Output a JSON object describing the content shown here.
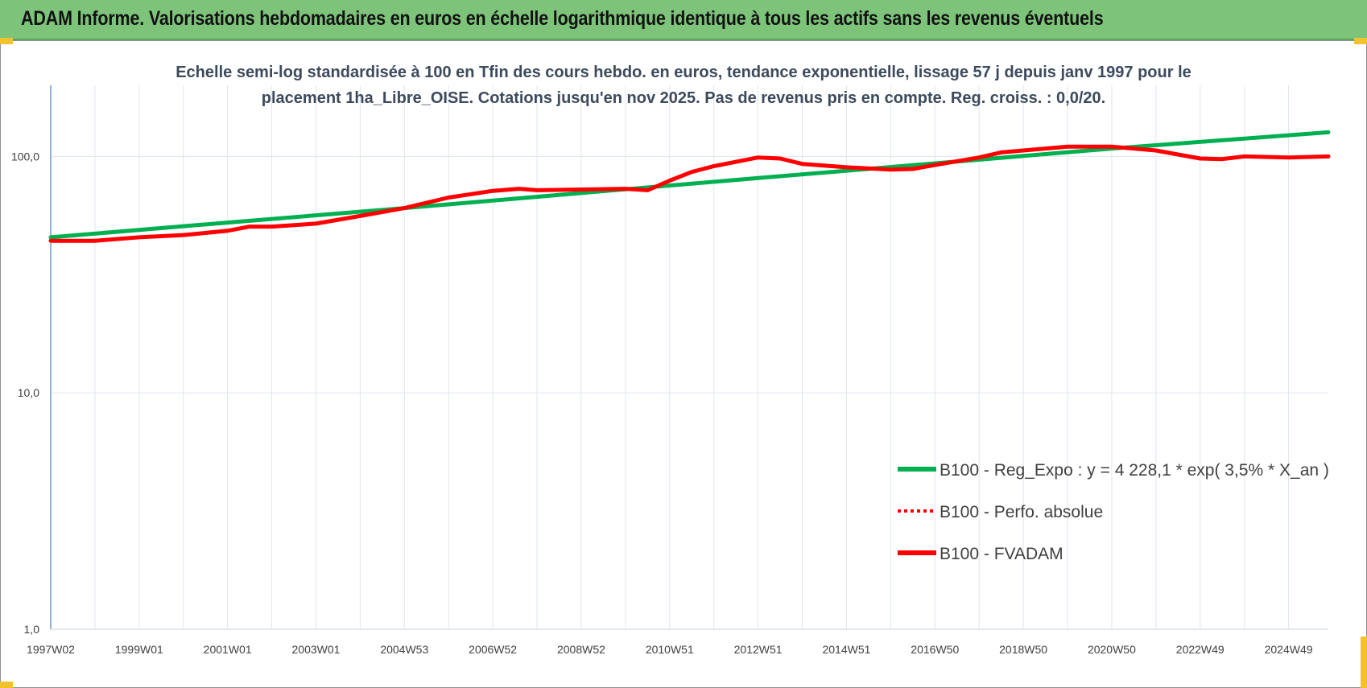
{
  "header": {
    "title": "ADAM Informe. Valorisations hebdomadaires en euros en échelle logarithmique identique à tous les actifs sans les revenus éventuels"
  },
  "colors": {
    "header_bg": "#7dc47a",
    "trend": "#00b050",
    "series": "#ff0000",
    "grid": "#dfe6ee",
    "axis": "#4a7ec0"
  },
  "chart_data": {
    "type": "line",
    "title_lines": [
      "Echelle semi-log standardisée à 100 en Tfin des cours hebdo. en euros, tendance exponentielle, lissage 57 j depuis janv 1997 pour le",
      "placement 1ha_Libre_OISE. Cotations jusqu'en nov 2025. Pas de revenus pris en compte. Reg. croiss. : 0,0/20."
    ],
    "y_scale": "log",
    "ylim": [
      1,
      200
    ],
    "xlim": [
      1997.0,
      2025.9
    ],
    "y_ticks": [
      {
        "value": 1,
        "label": "1,0"
      },
      {
        "value": 10,
        "label": "10,0"
      },
      {
        "value": 100,
        "label": "100,0"
      }
    ],
    "x_ticks": [
      {
        "value": 1997.0,
        "label": "1997W02"
      },
      {
        "value": 1999.0,
        "label": "1999W01"
      },
      {
        "value": 2001.0,
        "label": "2001W01"
      },
      {
        "value": 2003.0,
        "label": "2003W01"
      },
      {
        "value": 2005.0,
        "label": "2004W53"
      },
      {
        "value": 2007.0,
        "label": "2006W52"
      },
      {
        "value": 2009.0,
        "label": "2008W52"
      },
      {
        "value": 2011.0,
        "label": "2010W51"
      },
      {
        "value": 2013.0,
        "label": "2012W51"
      },
      {
        "value": 2015.0,
        "label": "2014W51"
      },
      {
        "value": 2017.0,
        "label": "2016W50"
      },
      {
        "value": 2019.0,
        "label": "2018W50"
      },
      {
        "value": 2021.0,
        "label": "2020W50"
      },
      {
        "value": 2023.0,
        "label": "2022W49"
      },
      {
        "value": 2025.0,
        "label": "2024W49"
      }
    ],
    "grid": true,
    "legend_position": "bottom-right",
    "series": [
      {
        "name": "B100 - Reg_Expo : y = 4 228,1 * exp( 3,5% *  X_an )",
        "style": "solid-green",
        "x": [
          1997.0,
          2001.0,
          2005.0,
          2009.0,
          2013.0,
          2017.0,
          2021.0,
          2025.9
        ],
        "values": [
          45.5,
          52.5,
          60.5,
          70.0,
          81.0,
          93.5,
          108.0,
          126.5
        ]
      },
      {
        "name": "B100 - Perfo. absolue",
        "style": "dotted-red",
        "x": [],
        "values": []
      },
      {
        "name": "B100 - FVADAM",
        "style": "solid-red",
        "x": [
          1997.0,
          1998.0,
          1999.0,
          2000.0,
          2001.0,
          2001.5,
          2002.0,
          2003.0,
          2004.0,
          2005.0,
          2006.0,
          2007.0,
          2007.6,
          2008.0,
          2009.0,
          2010.0,
          2010.5,
          2011.0,
          2011.5,
          2012.0,
          2013.0,
          2013.5,
          2014.0,
          2015.0,
          2016.0,
          2016.5,
          2017.0,
          2018.0,
          2018.5,
          2019.0,
          2020.0,
          2021.0,
          2022.0,
          2023.0,
          2023.5,
          2024.0,
          2025.0,
          2025.9
        ],
        "values": [
          44.0,
          44.0,
          45.5,
          46.5,
          48.5,
          50.5,
          50.5,
          52.0,
          56.0,
          60.5,
          67.0,
          71.5,
          73.0,
          72.0,
          72.5,
          73.0,
          72.0,
          79.0,
          86.0,
          91.0,
          99.0,
          98.0,
          93.0,
          90.0,
          88.0,
          88.5,
          92.0,
          99.0,
          104.0,
          106.0,
          110.0,
          110.0,
          106.0,
          98.0,
          97.5,
          100.0,
          99.0,
          100.0
        ]
      }
    ]
  }
}
